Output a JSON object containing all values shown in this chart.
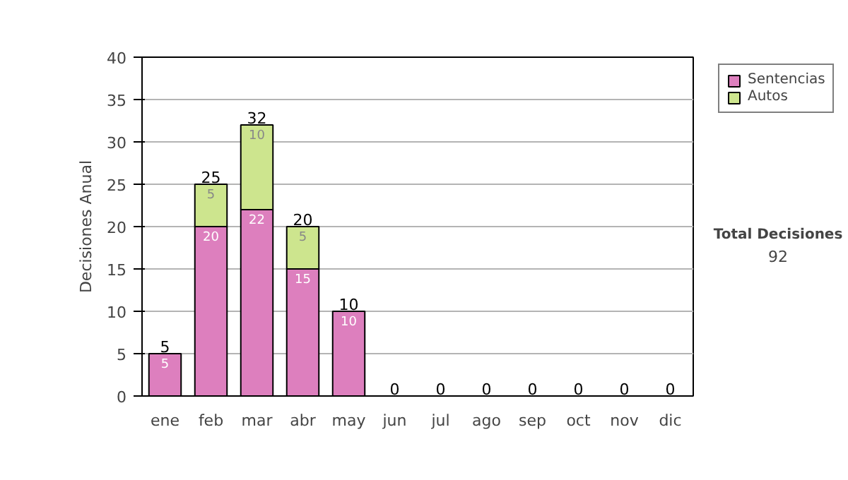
{
  "chart_data": {
    "type": "bar",
    "stacked": true,
    "ylabel": "Decisiones Anual",
    "categories": [
      "ene",
      "feb",
      "mar",
      "abr",
      "may",
      "jun",
      "jul",
      "ago",
      "sep",
      "oct",
      "nov",
      "dic"
    ],
    "series": [
      {
        "name": "Sentencias",
        "color": "#dd7fbe",
        "values": [
          5,
          20,
          22,
          15,
          10,
          0,
          0,
          0,
          0,
          0,
          0,
          0
        ],
        "value_labels": [
          "5",
          "20",
          "22",
          "15",
          "10",
          null,
          null,
          null,
          null,
          null,
          null,
          null
        ]
      },
      {
        "name": "Autos",
        "color": "#cde58e",
        "values": [
          0,
          5,
          10,
          5,
          0,
          0,
          0,
          0,
          0,
          0,
          0,
          0
        ],
        "value_labels": [
          null,
          "5",
          "10",
          "5",
          null,
          null,
          null,
          null,
          null,
          null,
          null,
          null
        ]
      }
    ],
    "totals": [
      "5",
      "25",
      "32",
      "20",
      "10",
      "0",
      "0",
      "0",
      "0",
      "0",
      "0",
      "0"
    ],
    "ylim": [
      0,
      40
    ],
    "yticks": [
      0,
      5,
      10,
      15,
      20,
      25,
      30,
      35,
      40
    ],
    "grid": "y",
    "legend": "right",
    "annotations": [
      "Total Decisiones",
      "92"
    ]
  }
}
